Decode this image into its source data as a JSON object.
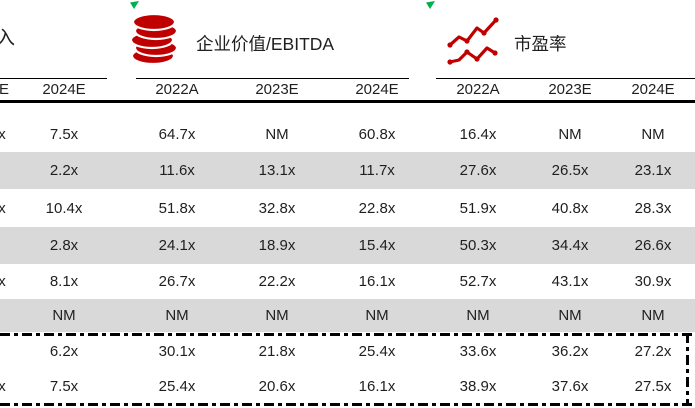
{
  "colors": {
    "accent_red": "#C00000",
    "stripe_gray": "#D9D9D9",
    "marker_green": "#00B050",
    "text": "#1f1f1f"
  },
  "left_section": {
    "title_fragment": "入",
    "header_fragment": "E",
    "columns": [
      "2024E"
    ],
    "rows": [
      [
        "7.5x"
      ],
      [
        "2.2x"
      ],
      [
        "10.4x"
      ],
      [
        "2.8x"
      ],
      [
        "8.1x"
      ],
      [
        "NM"
      ],
      [
        "6.2x"
      ],
      [
        "7.5x"
      ]
    ],
    "edge_fragment_text": "x",
    "edge_fragment_rows": [
      1,
      3,
      5,
      8
    ]
  },
  "ev_ebitda_section": {
    "title": "企业价值/EBITDA",
    "icon": "coin-stack-icon",
    "columns": [
      "2022A",
      "2023E",
      "2024E"
    ],
    "rows": [
      [
        "64.7x",
        "NM",
        "60.8x"
      ],
      [
        "11.6x",
        "13.1x",
        "11.7x"
      ],
      [
        "51.8x",
        "32.8x",
        "22.8x"
      ],
      [
        "24.1x",
        "18.9x",
        "15.4x"
      ],
      [
        "26.7x",
        "22.2x",
        "16.1x"
      ],
      [
        "NM",
        "NM",
        "NM"
      ],
      [
        "30.1x",
        "21.8x",
        "25.4x"
      ],
      [
        "25.4x",
        "20.6x",
        "16.1x"
      ]
    ]
  },
  "pe_section": {
    "title": "市盈率",
    "icon": "line-chart-icon",
    "columns": [
      "2022A",
      "2023E",
      "2024E"
    ],
    "rows": [
      [
        "16.4x",
        "NM",
        "NM"
      ],
      [
        "27.6x",
        "26.5x",
        "23.1x"
      ],
      [
        "51.9x",
        "40.8x",
        "28.3x"
      ],
      [
        "50.3x",
        "34.4x",
        "26.6x"
      ],
      [
        "52.7x",
        "43.1x",
        "30.9x"
      ],
      [
        "NM",
        "NM",
        "NM"
      ],
      [
        "33.6x",
        "36.2x",
        "27.2x"
      ],
      [
        "38.9x",
        "37.6x",
        "27.5x"
      ]
    ]
  }
}
